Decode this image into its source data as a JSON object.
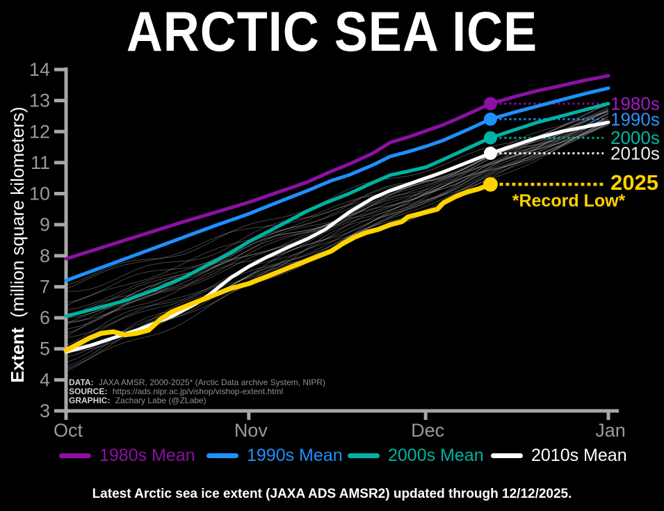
{
  "title": "ARCTIC SEA ICE",
  "caption": "Latest Arctic sea ice extent (JAXA ADS AMSR2) updated through 12/12/2025.",
  "y_axis": {
    "label_bold": "Extent",
    "label_rest": "(million square kilometers)",
    "ticks": [
      3,
      4,
      5,
      6,
      7,
      8,
      9,
      10,
      11,
      12,
      13,
      14
    ]
  },
  "x_axis": {
    "months": [
      "Oct",
      "Nov",
      "Dec",
      "Jan"
    ],
    "month_days": [
      0,
      31,
      61,
      92
    ]
  },
  "credits": {
    "data_label": "DATA:",
    "data_text": "JAXA AMSR, 2000-2025* (Arctic Data archive System, NIPR)",
    "source_label": "SOURCE:",
    "source_text": "https://ads.nipr.ac.jp/vishop/vishop-extent.html",
    "graphic_label": "GRAPHIC:",
    "graphic_text": "Zachary Labe (@ZLabe)"
  },
  "legend": {
    "items": [
      {
        "label": "1980s Mean",
        "color": "#8c10a4"
      },
      {
        "label": "1990s Mean",
        "color": "#1e90ff"
      },
      {
        "label": "2000s Mean",
        "color": "#00b2a2"
      },
      {
        "label": "2010s Mean",
        "color": "#ffffff"
      }
    ]
  },
  "annotations": {
    "record_low": "*Record Low*",
    "current_year": "2025"
  },
  "colors": {
    "background": "#000000",
    "axis": "#a8a8a8",
    "tick_text": "#9a9a9a",
    "gold": "#ffd200"
  },
  "chart_data": {
    "type": "line",
    "title": "ARCTIC SEA ICE",
    "ylabel": "Extent (million square kilometers)",
    "ylim": [
      3,
      14
    ],
    "xticks": [
      "Oct",
      "Nov",
      "Dec",
      "Jan"
    ],
    "x_unit": "days since Oct 1",
    "updated_through": "12/12/2025",
    "current_day": 72,
    "series": [
      {
        "name": "1980s Mean",
        "end_label": "1980s",
        "color": "#8c10a4",
        "label_color": "#a21ac2",
        "width": 5,
        "dot_day": 72,
        "dot_value": 12.9,
        "dot_radius": 9.5,
        "label_size": 26,
        "label_weight": "normal",
        "leader_dash": "3 4",
        "leader_width": 3,
        "label_dy": 9,
        "points": [
          [
            0,
            7.9
          ],
          [
            5,
            8.2
          ],
          [
            10,
            8.5
          ],
          [
            15,
            8.8
          ],
          [
            20,
            9.1
          ],
          [
            25,
            9.38
          ],
          [
            28,
            9.55
          ],
          [
            31,
            9.72
          ],
          [
            34,
            9.92
          ],
          [
            38,
            10.18
          ],
          [
            41,
            10.38
          ],
          [
            45,
            10.72
          ],
          [
            48,
            10.95
          ],
          [
            52,
            11.3
          ],
          [
            55,
            11.65
          ],
          [
            58,
            11.82
          ],
          [
            61,
            12.02
          ],
          [
            64,
            12.22
          ],
          [
            68,
            12.55
          ],
          [
            72,
            12.9
          ],
          [
            76,
            13.12
          ],
          [
            80,
            13.32
          ],
          [
            84,
            13.48
          ],
          [
            88,
            13.65
          ],
          [
            92,
            13.8
          ]
        ]
      },
      {
        "name": "1990s Mean",
        "end_label": "1990s",
        "color": "#1e90ff",
        "label_color": "#2b93ff",
        "width": 5,
        "dot_day": 72,
        "dot_value": 12.4,
        "dot_radius": 9.5,
        "label_size": 26,
        "label_weight": "normal",
        "leader_dash": "3 4",
        "leader_width": 3,
        "label_dy": 9,
        "points": [
          [
            0,
            7.2
          ],
          [
            5,
            7.55
          ],
          [
            10,
            7.9
          ],
          [
            15,
            8.25
          ],
          [
            20,
            8.6
          ],
          [
            25,
            8.95
          ],
          [
            28,
            9.15
          ],
          [
            31,
            9.35
          ],
          [
            34,
            9.58
          ],
          [
            38,
            9.88
          ],
          [
            41,
            10.1
          ],
          [
            45,
            10.42
          ],
          [
            48,
            10.6
          ],
          [
            52,
            10.92
          ],
          [
            55,
            11.2
          ],
          [
            58,
            11.35
          ],
          [
            61,
            11.52
          ],
          [
            64,
            11.72
          ],
          [
            68,
            12.05
          ],
          [
            72,
            12.4
          ],
          [
            76,
            12.62
          ],
          [
            80,
            12.82
          ],
          [
            84,
            13.02
          ],
          [
            88,
            13.22
          ],
          [
            92,
            13.4
          ]
        ]
      },
      {
        "name": "2000s Mean",
        "end_label": "2000s",
        "color": "#00b2a2",
        "label_color": "#00b8a8",
        "width": 5,
        "dot_day": 72,
        "dot_value": 11.8,
        "dot_radius": 9.5,
        "label_size": 26,
        "label_weight": "normal",
        "leader_dash": "3 4",
        "leader_width": 3,
        "label_dy": 9,
        "points": [
          [
            0,
            6.05
          ],
          [
            5,
            6.3
          ],
          [
            10,
            6.55
          ],
          [
            15,
            6.9
          ],
          [
            20,
            7.3
          ],
          [
            24,
            7.7
          ],
          [
            28,
            8.1
          ],
          [
            31,
            8.45
          ],
          [
            34,
            8.75
          ],
          [
            38,
            9.15
          ],
          [
            41,
            9.45
          ],
          [
            44,
            9.7
          ],
          [
            48,
            10.0
          ],
          [
            52,
            10.35
          ],
          [
            55,
            10.6
          ],
          [
            58,
            10.72
          ],
          [
            61,
            10.85
          ],
          [
            64,
            11.1
          ],
          [
            68,
            11.45
          ],
          [
            72,
            11.8
          ],
          [
            76,
            12.05
          ],
          [
            80,
            12.3
          ],
          [
            84,
            12.5
          ],
          [
            88,
            12.7
          ],
          [
            92,
            12.9
          ]
        ]
      },
      {
        "name": "2010s Mean",
        "end_label": "2010s",
        "color": "#ffffff",
        "label_color": "#ebebeb",
        "width": 5,
        "dot_day": 72,
        "dot_value": 11.3,
        "dot_radius": 9.5,
        "label_size": 26,
        "label_weight": "normal",
        "leader_dash": "3 4",
        "leader_width": 3,
        "label_dy": 9,
        "points": [
          [
            0,
            4.9
          ],
          [
            4,
            5.1
          ],
          [
            8,
            5.35
          ],
          [
            12,
            5.6
          ],
          [
            16,
            5.9
          ],
          [
            18,
            6.05
          ],
          [
            20,
            6.25
          ],
          [
            22,
            6.45
          ],
          [
            24,
            6.7
          ],
          [
            26,
            7.0
          ],
          [
            28,
            7.3
          ],
          [
            31,
            7.65
          ],
          [
            34,
            7.95
          ],
          [
            38,
            8.3
          ],
          [
            41,
            8.55
          ],
          [
            44,
            8.85
          ],
          [
            48,
            9.4
          ],
          [
            52,
            9.85
          ],
          [
            55,
            10.1
          ],
          [
            58,
            10.3
          ],
          [
            61,
            10.5
          ],
          [
            64,
            10.7
          ],
          [
            68,
            11.0
          ],
          [
            72,
            11.3
          ],
          [
            76,
            11.55
          ],
          [
            80,
            11.8
          ],
          [
            84,
            12.0
          ],
          [
            88,
            12.15
          ],
          [
            92,
            12.3
          ]
        ]
      },
      {
        "name": "2025",
        "end_label": "2025",
        "color": "#ffd200",
        "label_color": "#ffd200",
        "width": 7,
        "dot_day": 72,
        "dot_value": 10.3,
        "dot_radius": 10.5,
        "label_size": 31,
        "label_weight": "bold",
        "leader_dash": "5 4",
        "leader_width": 4.5,
        "label_dy": 8,
        "ends_at_dot": true,
        "points": [
          [
            0,
            4.95
          ],
          [
            2,
            5.15
          ],
          [
            4,
            5.35
          ],
          [
            6,
            5.5
          ],
          [
            8,
            5.55
          ],
          [
            10,
            5.45
          ],
          [
            12,
            5.5
          ],
          [
            14,
            5.6
          ],
          [
            16,
            5.95
          ],
          [
            18,
            6.2
          ],
          [
            20,
            6.35
          ],
          [
            22,
            6.5
          ],
          [
            24,
            6.65
          ],
          [
            26,
            6.8
          ],
          [
            28,
            6.95
          ],
          [
            31,
            7.1
          ],
          [
            33,
            7.25
          ],
          [
            35,
            7.4
          ],
          [
            37,
            7.55
          ],
          [
            39,
            7.7
          ],
          [
            41,
            7.85
          ],
          [
            43,
            8.0
          ],
          [
            45,
            8.15
          ],
          [
            47,
            8.4
          ],
          [
            49,
            8.6
          ],
          [
            51,
            8.75
          ],
          [
            53,
            8.85
          ],
          [
            55,
            9.0
          ],
          [
            57,
            9.1
          ],
          [
            58,
            9.25
          ],
          [
            60,
            9.35
          ],
          [
            61,
            9.4
          ],
          [
            63,
            9.5
          ],
          [
            64,
            9.7
          ],
          [
            66,
            9.9
          ],
          [
            68,
            10.05
          ],
          [
            70,
            10.15
          ],
          [
            72,
            10.3
          ]
        ]
      }
    ],
    "background_years": {
      "count": 26,
      "description": "individual years 2000-2025 (thin gray lines)",
      "start_range": [
        4.3,
        7.6
      ],
      "end_range": [
        12.15,
        12.9
      ],
      "color": "rgba(255,255,255,0.27)",
      "width": 1,
      "seed": 11
    }
  }
}
